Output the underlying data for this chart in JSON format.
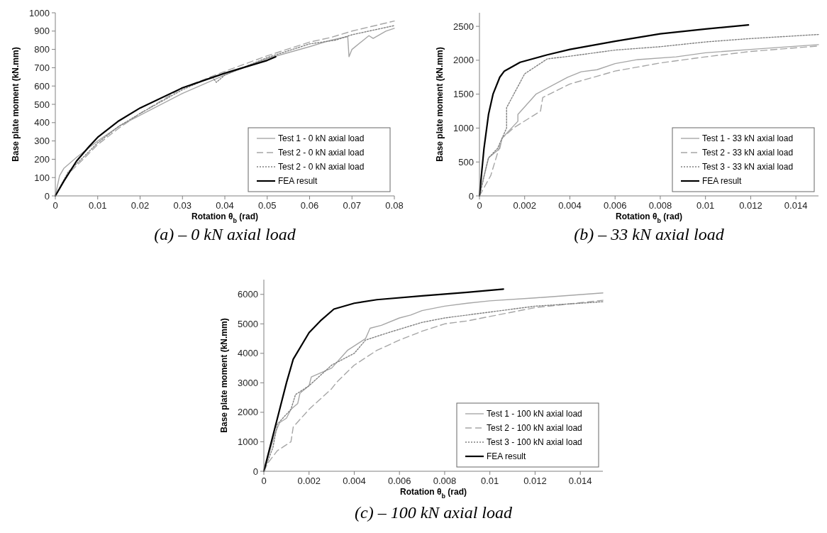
{
  "chart_data": [
    {
      "type": "line",
      "xlabel": "Rotation θ$_{b}$ (rad)",
      "ylabel": "Base plate moment (kN.mm)",
      "xlim": [
        0,
        0.08
      ],
      "ylim": [
        0,
        1000
      ],
      "xticks": [
        0,
        0.01,
        0.02,
        0.03,
        0.04,
        0.05,
        0.06,
        0.07,
        0.08
      ],
      "yticks": [
        0,
        100,
        200,
        300,
        400,
        500,
        600,
        700,
        800,
        900,
        1000
      ],
      "legend": "bottom right",
      "annotations": [
        "(a) – 0 kN axial load"
      ],
      "series": [
        {
          "name": "Test 1 - 0 kN axial load",
          "color": "#a6a6a6",
          "line_style": "solid",
          "x": [
            0,
            0.001,
            0.002,
            0.005,
            0.01,
            0.015,
            0.02,
            0.03,
            0.04,
            0.05,
            0.06,
            0.065,
            0.069,
            0.0693,
            0.07,
            0.074,
            0.075,
            0.078,
            0.08
          ],
          "values": [
            0,
            110,
            150,
            210,
            300,
            380,
            440,
            560,
            660,
            750,
            815,
            850,
            870,
            760,
            800,
            875,
            860,
            900,
            915
          ]
        },
        {
          "name": "Test 2 - 0 kN axial load",
          "color": "#a6a6a6",
          "line_style": "dashed",
          "x": [
            0,
            0.003,
            0.007,
            0.01,
            0.015,
            0.02,
            0.025,
            0.03,
            0.04,
            0.05,
            0.06,
            0.065,
            0.07,
            0.08
          ],
          "values": [
            0,
            120,
            210,
            280,
            370,
            450,
            520,
            590,
            680,
            765,
            840,
            865,
            900,
            955
          ]
        },
        {
          "name": "Test 2 - 0 kN axial load",
          "color": "#808080",
          "line_style": "dotted",
          "x": [
            0,
            0.003,
            0.007,
            0.01,
            0.015,
            0.02,
            0.03,
            0.037,
            0.038,
            0.04,
            0.05,
            0.06,
            0.066,
            0.07,
            0.08
          ],
          "values": [
            0,
            130,
            220,
            290,
            380,
            450,
            580,
            650,
            620,
            660,
            755,
            830,
            850,
            880,
            930
          ]
        },
        {
          "name": "FEA result",
          "color": "#000000",
          "line_style": "solid",
          "x": [
            0,
            0.002,
            0.005,
            0.008,
            0.01,
            0.015,
            0.02,
            0.03,
            0.04,
            0.05,
            0.052
          ],
          "values": [
            0,
            80,
            190,
            270,
            320,
            410,
            480,
            590,
            670,
            740,
            760
          ]
        }
      ]
    },
    {
      "type": "line",
      "xlabel": "Rotation θ$_{b}$ (rad)",
      "ylabel": "Base plate moment (kN.mm)",
      "xlim": [
        0,
        0.015
      ],
      "ylim": [
        0,
        2700
      ],
      "xticks": [
        0,
        0.002,
        0.004,
        0.006,
        0.008,
        0.01,
        0.012,
        0.014
      ],
      "yticks": [
        0,
        500,
        1000,
        1500,
        2000,
        2500
      ],
      "legend": "bottom right",
      "annotations": [
        "(b) – 33 kN axial load"
      ],
      "series": [
        {
          "name": "Test 1 - 33 kN axial load",
          "color": "#a6a6a6",
          "line_style": "solid",
          "x": [
            0,
            0.0002,
            0.0004,
            0.0009,
            0.001,
            0.0017,
            0.0017,
            0.0025,
            0.0039,
            0.0045,
            0.0052,
            0.006,
            0.007,
            0.0087,
            0.01,
            0.012,
            0.015
          ],
          "values": [
            0,
            300,
            560,
            700,
            850,
            1100,
            1200,
            1500,
            1750,
            1830,
            1860,
            1950,
            2010,
            2050,
            2110,
            2160,
            2230
          ]
        },
        {
          "name": "Test 2 - 33 kN axial load",
          "color": "#a6a6a6",
          "line_style": "dashed",
          "x": [
            0,
            0.0005,
            0.001,
            0.0015,
            0.0027,
            0.0028,
            0.004,
            0.006,
            0.008,
            0.01,
            0.012,
            0.015
          ],
          "values": [
            0,
            300,
            850,
            1000,
            1250,
            1450,
            1650,
            1840,
            1960,
            2050,
            2130,
            2210
          ]
        },
        {
          "name": "Test 3 - 33 kN axial load",
          "color": "#808080",
          "line_style": "dotted",
          "x": [
            0,
            0.0004,
            0.0008,
            0.0012,
            0.0012,
            0.002,
            0.003,
            0.004,
            0.006,
            0.008,
            0.01,
            0.012,
            0.015
          ],
          "values": [
            0,
            560,
            700,
            1000,
            1300,
            1800,
            2020,
            2060,
            2150,
            2200,
            2270,
            2320,
            2380
          ]
        },
        {
          "name": "FEA result",
          "color": "#000000",
          "line_style": "solid",
          "x": [
            0,
            0.0002,
            0.0004,
            0.0006,
            0.0009,
            0.0011,
            0.0018,
            0.003,
            0.004,
            0.006,
            0.008,
            0.01,
            0.0119
          ],
          "values": [
            0,
            700,
            1200,
            1500,
            1750,
            1840,
            1970,
            2080,
            2160,
            2280,
            2390,
            2460,
            2520
          ]
        }
      ]
    },
    {
      "type": "line",
      "xlabel": "Rotation θ$_{b}$ (rad)",
      "ylabel": "Base plate moment (kN.mm)",
      "xlim": [
        0,
        0.015
      ],
      "ylim": [
        0,
        6500
      ],
      "xticks": [
        0,
        0.002,
        0.004,
        0.006,
        0.008,
        0.01,
        0.012,
        0.014
      ],
      "yticks": [
        0,
        1000,
        2000,
        3000,
        4000,
        5000,
        6000
      ],
      "legend": "bottom right",
      "annotations": [
        "(c) – 100 kN axial load"
      ],
      "series": [
        {
          "name": "Test 1 - 100 kN axial load",
          "color": "#a6a6a6",
          "line_style": "solid",
          "x": [
            0,
            0.0005,
            0.0007,
            0.001,
            0.0012,
            0.0015,
            0.0016,
            0.002,
            0.0021,
            0.003,
            0.0037,
            0.0045,
            0.0047,
            0.0052,
            0.006,
            0.0065,
            0.007,
            0.008,
            0.009,
            0.01,
            0.012,
            0.015
          ],
          "values": [
            0,
            1300,
            1650,
            1800,
            2100,
            2300,
            2650,
            2900,
            3200,
            3500,
            4100,
            4500,
            4850,
            4950,
            5200,
            5300,
            5450,
            5600,
            5700,
            5780,
            5880,
            6050
          ]
        },
        {
          "name": "Test 2 - 100 kN axial load",
          "color": "#a6a6a6",
          "line_style": "dashed",
          "x": [
            0,
            0.0002,
            0.0006,
            0.0012,
            0.0013,
            0.002,
            0.003,
            0.0032,
            0.004,
            0.005,
            0.006,
            0.007,
            0.008,
            0.009,
            0.01,
            0.012,
            0.015
          ],
          "values": [
            0,
            300,
            700,
            1000,
            1500,
            2100,
            2800,
            3000,
            3600,
            4100,
            4450,
            4750,
            5000,
            5100,
            5250,
            5550,
            5800
          ]
        },
        {
          "name": "Test 3 - 100 kN axial load",
          "color": "#808080",
          "line_style": "dotted",
          "x": [
            0,
            0.0004,
            0.0006,
            0.0012,
            0.0014,
            0.002,
            0.003,
            0.004,
            0.0045,
            0.0055,
            0.007,
            0.008,
            0.01,
            0.012,
            0.015
          ],
          "values": [
            0,
            800,
            1600,
            2100,
            2600,
            2900,
            3600,
            4000,
            4450,
            4700,
            5050,
            5200,
            5400,
            5600,
            5750
          ]
        },
        {
          "name": "FEA result",
          "color": "#000000",
          "line_style": "solid",
          "x": [
            0,
            0.0006,
            0.001,
            0.0013,
            0.002,
            0.0025,
            0.0031,
            0.004,
            0.005,
            0.007,
            0.009,
            0.0106
          ],
          "values": [
            0,
            1800,
            3000,
            3800,
            4700,
            5100,
            5500,
            5700,
            5820,
            5950,
            6070,
            6180
          ]
        }
      ]
    }
  ]
}
